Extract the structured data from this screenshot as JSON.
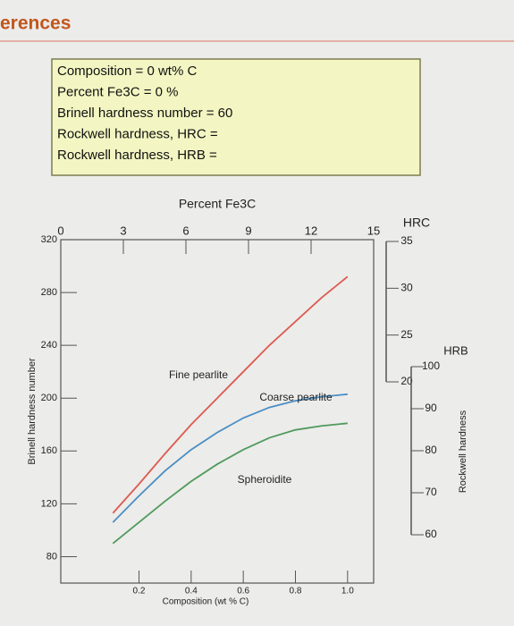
{
  "header": {
    "title": "erences"
  },
  "info": {
    "lines": [
      "Composition = 0 wt% C",
      "Percent Fe3C = 0 %",
      "Brinell hardness number = 60",
      "Rockwell hardness, HRC =",
      "Rockwell hardness, HRB ="
    ]
  },
  "chart_data": {
    "type": "line",
    "x_label": "Composition (wt % C)",
    "y_label": "Brinell hardness number",
    "x": [
      0.1,
      0.2,
      0.3,
      0.4,
      0.5,
      0.6,
      0.7,
      0.8,
      0.9,
      1.0
    ],
    "series": [
      {
        "name": "Fine pearlite",
        "color": "#dd5a50",
        "values": [
          113,
          135,
          158,
          180,
          200,
          220,
          240,
          258,
          276,
          292
        ]
      },
      {
        "name": "Coarse pearlite",
        "color": "#4a8ec4",
        "values": [
          106,
          126,
          145,
          161,
          174,
          185,
          193,
          198,
          201,
          203
        ]
      },
      {
        "name": "Spheroidite",
        "color": "#4f9a5c",
        "values": [
          90,
          106,
          122,
          137,
          150,
          161,
          170,
          176,
          179,
          181
        ]
      }
    ],
    "xlim": [
      -0.1,
      1.1
    ],
    "xticks": [
      0.2,
      0.4,
      0.6,
      0.8,
      {
        "value": 1,
        "label": "1.0"
      }
    ],
    "ylim": [
      60,
      320
    ],
    "yticks": [
      80,
      120,
      160,
      200,
      240,
      280,
      320
    ],
    "x2_label": "Percent Fe3C",
    "x2lim": [
      0,
      15
    ],
    "x2ticks": [
      0,
      3,
      6,
      9,
      12,
      15
    ],
    "hrc_label": "HRC",
    "hrclim": [
      20,
      35
    ],
    "hrcticks": [
      20,
      25,
      30,
      35
    ],
    "hrb_label": "HRB",
    "hrblim": [
      60,
      100
    ],
    "hrbticks": [
      60,
      70,
      80,
      90,
      100
    ],
    "right_label": "Rockwell hardness"
  }
}
